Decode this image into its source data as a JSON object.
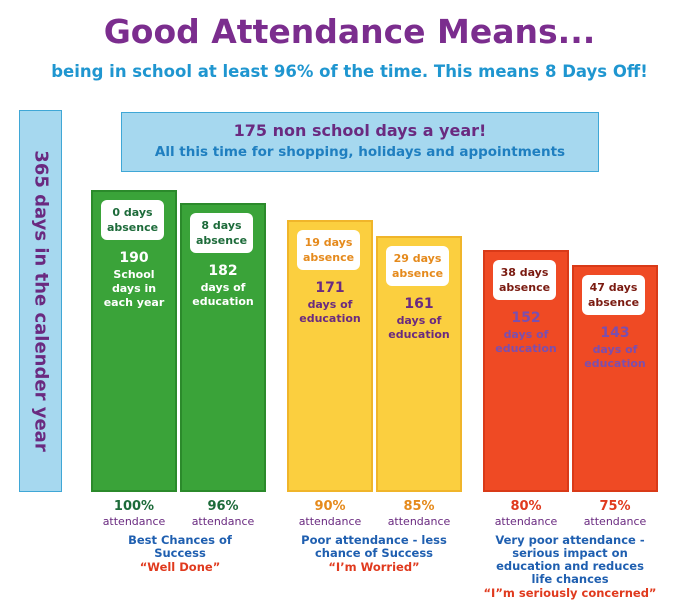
{
  "title": "Good Attendance Means...",
  "subtitle": "being in school at least 96% of the time. This means 8 Days Off!",
  "year_label": "365 days in the calender year",
  "non_school": {
    "line1": "175 non school days a year!",
    "line2": "All this time for shopping, holidays and appointments"
  },
  "colors": {
    "green": "#3aa339",
    "yellow": "#fbcf3f",
    "red": "#ef4a24",
    "purple": "#6a2a80",
    "blue": "#1f96d0",
    "quote": "#e03a1e"
  },
  "chart_data": {
    "type": "bar",
    "categories": [
      "100%",
      "96%",
      "90%",
      "85%",
      "80%",
      "75%"
    ],
    "values": [
      190,
      182,
      171,
      161,
      152,
      143
    ],
    "ylim": [
      0,
      190
    ],
    "bars": [
      {
        "pct": "100%",
        "attendance": "attendance",
        "absence": [
          "0 days",
          "absence"
        ],
        "days": "190",
        "days_label": "School\ndays in\neach year"
      },
      {
        "pct": "96%",
        "attendance": "attendance",
        "absence": [
          "8 days",
          "absence"
        ],
        "days": "182",
        "days_label": "days of\neducation"
      },
      {
        "pct": "90%",
        "attendance": "attendance",
        "absence": [
          "19 days",
          "absence"
        ],
        "days": "171",
        "days_label": "days of\neducation"
      },
      {
        "pct": "85%",
        "attendance": "attendance",
        "absence": [
          "29 days",
          "absence"
        ],
        "days": "161",
        "days_label": "days of\neducation"
      },
      {
        "pct": "80%",
        "attendance": "attendance",
        "absence": [
          "38 days",
          "absence"
        ],
        "days": "152",
        "days_label": "days of\neducation"
      },
      {
        "pct": "75%",
        "attendance": "attendance",
        "absence": [
          "47 days",
          "absence"
        ],
        "days": "143",
        "days_label": "days of\neducation"
      }
    ],
    "groups": [
      {
        "caption": "Best Chances of\nSuccess",
        "quote": "“Well Done”"
      },
      {
        "caption": "Poor attendance - less\nchance of Success",
        "quote": "“I’m Worried”"
      },
      {
        "caption": "Very poor attendance -\nserious impact on\neducation and reduces\nlife chances",
        "quote": "“I”m seriously concerned”"
      }
    ]
  }
}
